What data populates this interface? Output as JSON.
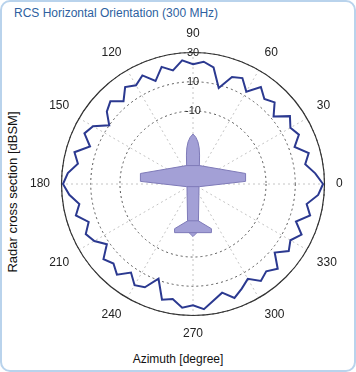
{
  "chart_data": {
    "type": "radar",
    "title": "RCS Horizontal Orientation (300 MHz)",
    "x_label": "Azimuth [degree]",
    "y_label": "Radar cross section [dBSM]",
    "x": [
      0,
      5,
      10,
      15,
      20,
      25,
      30,
      35,
      40,
      45,
      50,
      55,
      60,
      65,
      70,
      75,
      80,
      85,
      90,
      95,
      100,
      105,
      110,
      115,
      120,
      125,
      130,
      135,
      140,
      145,
      150,
      155,
      160,
      165,
      170,
      175,
      180,
      185,
      190,
      195,
      200,
      205,
      210,
      215,
      220,
      225,
      230,
      235,
      240,
      245,
      250,
      255,
      260,
      265,
      270,
      275,
      280,
      285,
      290,
      295,
      300,
      305,
      310,
      315,
      320,
      325,
      330,
      335,
      340,
      345,
      350,
      355
    ],
    "values": [
      29,
      24,
      18,
      22,
      14,
      20,
      17,
      21,
      12,
      19,
      16,
      21,
      13,
      20,
      18,
      8,
      21,
      24,
      22,
      25,
      19,
      23,
      15,
      22,
      18,
      21,
      14,
      20,
      17,
      10,
      19,
      22,
      15,
      24,
      20,
      26,
      29,
      25,
      19,
      23,
      16,
      21,
      18,
      12,
      20,
      17,
      21,
      14,
      20,
      18,
      9,
      22,
      20,
      25,
      23,
      26,
      21,
      17,
      23,
      19,
      15,
      21,
      18,
      22,
      13,
      20,
      17,
      22,
      15,
      23,
      19,
      26
    ],
    "color": "#2b3990",
    "ylim": [
      -60,
      30
    ],
    "yticks": [
      -10,
      10,
      30
    ],
    "xticks": [
      0,
      30,
      60,
      90,
      120,
      150,
      180,
      210,
      240,
      270,
      300,
      330
    ],
    "grid": true
  }
}
